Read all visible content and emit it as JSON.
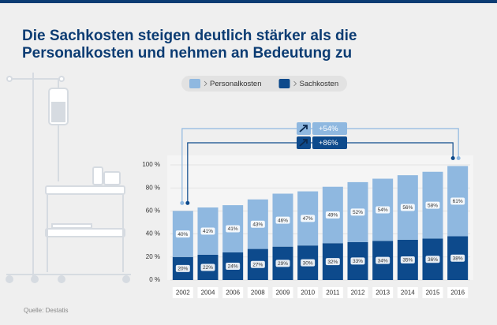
{
  "chart_data": {
    "type": "stacked-bar",
    "title": "Die Sachkosten steigen deutlich stärker als die",
    "subtitle": "Personalkosten und nehmen an Bedeutung zu",
    "source": "Quelle: Destatis",
    "categories": [
      "2002",
      "2004",
      "2006",
      "2008",
      "2009",
      "2010",
      "2011",
      "2012",
      "2013",
      "2014",
      "2015",
      "2016"
    ],
    "series": [
      {
        "name": "Sachkosten",
        "color": "#0d4a8c",
        "values": [
          20,
          22,
          24,
          27,
          29,
          30,
          32,
          33,
          34,
          35,
          36,
          38
        ],
        "value_labels": [
          "20%",
          "22%",
          "24%",
          "27%",
          "29%",
          "30%",
          "32%",
          "33%",
          "34%",
          "35%",
          "36%",
          "38%"
        ]
      },
      {
        "name": "Personalkosten",
        "color": "#8fb8e0",
        "values": [
          40,
          41,
          41,
          43,
          46,
          47,
          49,
          52,
          54,
          56,
          58,
          61
        ],
        "value_labels": [
          "40%",
          "41%",
          "41%",
          "43%",
          "46%",
          "47%",
          "49%",
          "52%",
          "54%",
          "56%",
          "58%",
          "61%"
        ]
      }
    ],
    "annotations": [
      "+54%",
      "+86%"
    ],
    "ylim": [
      0,
      100
    ],
    "yticks": [
      {
        "value": 0,
        "label": "0 %"
      },
      {
        "value": 20,
        "label": "20 %"
      },
      {
        "value": 40,
        "label": "40 %"
      },
      {
        "value": 60,
        "label": "60 %"
      },
      {
        "value": 80,
        "label": "80 %"
      },
      {
        "value": 100,
        "label": "100 %"
      }
    ],
    "grid": true
  }
}
